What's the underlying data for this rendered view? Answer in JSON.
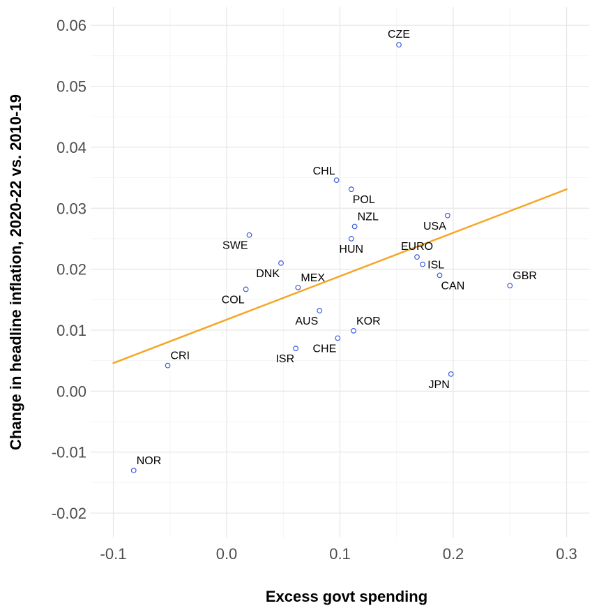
{
  "chart_data": {
    "type": "scatter",
    "xlabel": "Excess govt spending",
    "ylabel": "Change in headline inflation, 2020-22 vs. 2010-19",
    "xlim": [
      -0.12,
      0.32
    ],
    "ylim": [
      -0.024,
      0.063
    ],
    "x_ticks": [
      -0.1,
      0.0,
      0.1,
      0.2,
      0.3
    ],
    "x_tick_labels": [
      "-0.1",
      "0.0",
      "0.1",
      "0.2",
      "0.3"
    ],
    "y_ticks": [
      -0.02,
      -0.01,
      0.0,
      0.01,
      0.02,
      0.03,
      0.04,
      0.05,
      0.06
    ],
    "y_tick_labels": [
      "-0.02",
      "-0.01",
      "0.00",
      "0.01",
      "0.02",
      "0.03",
      "0.04",
      "0.05",
      "0.06"
    ],
    "grid": true,
    "point_color": "#3b5bdb",
    "trend_color": "#f5a623",
    "points": [
      {
        "label": "CZE",
        "x": 0.152,
        "y": 0.0568,
        "pos": "above"
      },
      {
        "label": "CHL",
        "x": 0.097,
        "y": 0.0346,
        "pos": "above-left"
      },
      {
        "label": "POL",
        "x": 0.11,
        "y": 0.0331,
        "pos": "below-right"
      },
      {
        "label": "USA",
        "x": 0.195,
        "y": 0.0288,
        "pos": "below-left"
      },
      {
        "label": "NZL",
        "x": 0.113,
        "y": 0.027,
        "pos": "above-right"
      },
      {
        "label": "SWE",
        "x": 0.02,
        "y": 0.0256,
        "pos": "below-left"
      },
      {
        "label": "HUN",
        "x": 0.11,
        "y": 0.025,
        "pos": "below"
      },
      {
        "label": "EURO",
        "x": 0.168,
        "y": 0.022,
        "pos": "above"
      },
      {
        "label": "DNK",
        "x": 0.048,
        "y": 0.021,
        "pos": "below-left"
      },
      {
        "label": "ISL",
        "x": 0.173,
        "y": 0.0208,
        "pos": "right"
      },
      {
        "label": "CAN",
        "x": 0.188,
        "y": 0.019,
        "pos": "below-right"
      },
      {
        "label": "GBR",
        "x": 0.25,
        "y": 0.0173,
        "pos": "above-right"
      },
      {
        "label": "MEX",
        "x": 0.063,
        "y": 0.017,
        "pos": "above-right"
      },
      {
        "label": "COL",
        "x": 0.017,
        "y": 0.0167,
        "pos": "below-left"
      },
      {
        "label": "AUS",
        "x": 0.082,
        "y": 0.0132,
        "pos": "below-left"
      },
      {
        "label": "KOR",
        "x": 0.112,
        "y": 0.0099,
        "pos": "above-right"
      },
      {
        "label": "CHE",
        "x": 0.098,
        "y": 0.0087,
        "pos": "below-left"
      },
      {
        "label": "ISR",
        "x": 0.061,
        "y": 0.007,
        "pos": "below-left"
      },
      {
        "label": "CRI",
        "x": -0.052,
        "y": 0.0042,
        "pos": "above-right"
      },
      {
        "label": "JPN",
        "x": 0.198,
        "y": 0.0028,
        "pos": "below-left"
      },
      {
        "label": "NOR",
        "x": -0.082,
        "y": -0.013,
        "pos": "above-right"
      }
    ],
    "trend_line": {
      "x": [
        -0.1,
        0.3
      ],
      "y": [
        0.0046,
        0.0331
      ]
    }
  }
}
